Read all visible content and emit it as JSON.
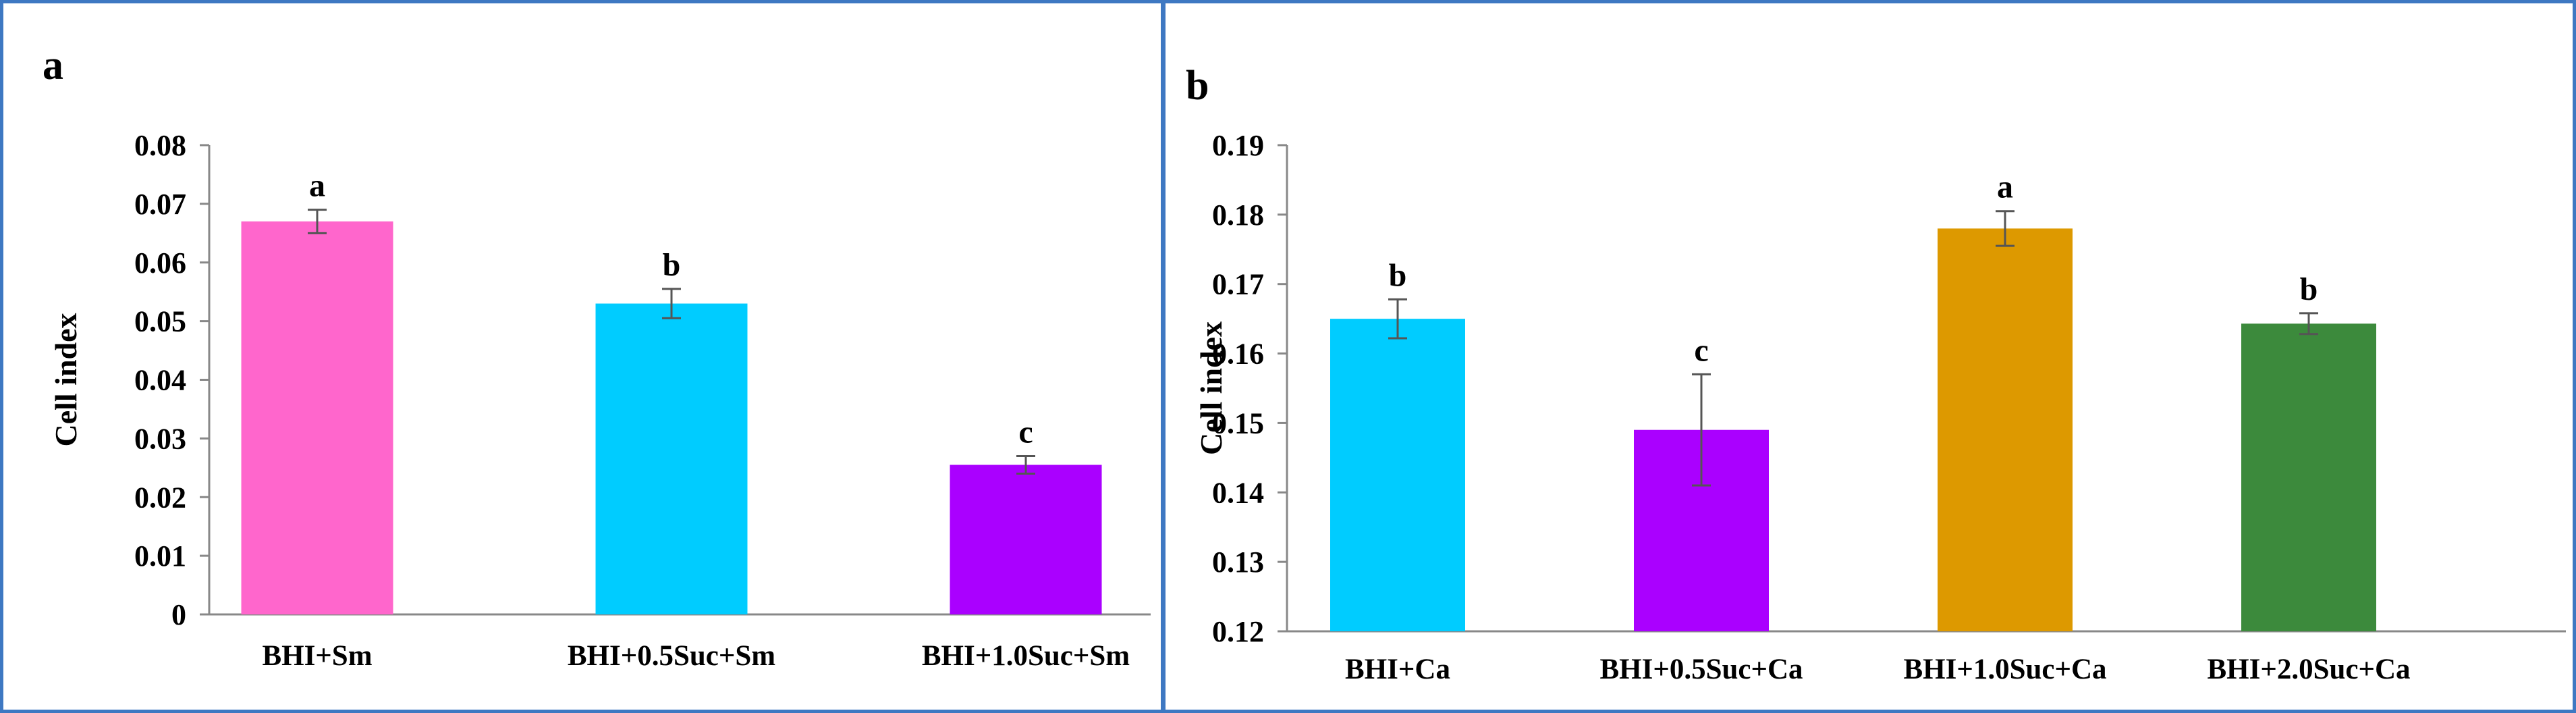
{
  "chart_data": [
    {
      "panel_label": "a",
      "type": "bar",
      "ylabel": "Cell index",
      "xlabel": "",
      "ylim": [
        0,
        0.08
      ],
      "yticks": [
        "0",
        "0.01",
        "0.02",
        "0.03",
        "0.04",
        "0.05",
        "0.06",
        "0.07",
        "0.08"
      ],
      "categories": [
        "BHI+Sm",
        "BHI+0.5Suc+Sm",
        "BHI+1.0Suc+Sm"
      ],
      "values": [
        0.067,
        0.053,
        0.0255
      ],
      "errors": [
        0.002,
        0.0025,
        0.0015
      ],
      "significance": [
        "a",
        "b",
        "c"
      ],
      "colors": [
        "#ff66cc",
        "#00ccff",
        "#aa00ff"
      ],
      "grid": false
    },
    {
      "panel_label": "b",
      "type": "bar",
      "ylabel": "Cell index",
      "xlabel": "",
      "ylim": [
        0.12,
        0.19
      ],
      "yticks": [
        "0.12",
        "0.13",
        "0.14",
        "0.15",
        "0.16",
        "0.17",
        "0.18",
        "0.19"
      ],
      "categories": [
        "BHI+Ca",
        "BHI+0.5Suc+Ca",
        "BHI+1.0Suc+Ca",
        "BHI+2.0Suc+Ca"
      ],
      "values": [
        0.165,
        0.149,
        0.178,
        0.1643
      ],
      "errors": [
        0.0028,
        0.008,
        0.0025,
        0.0015
      ],
      "significance": [
        "b",
        "c",
        "a",
        "b"
      ],
      "colors": [
        "#00ccff",
        "#aa00ff",
        "#dd9900",
        "#3c8a3c"
      ],
      "grid": false
    }
  ]
}
